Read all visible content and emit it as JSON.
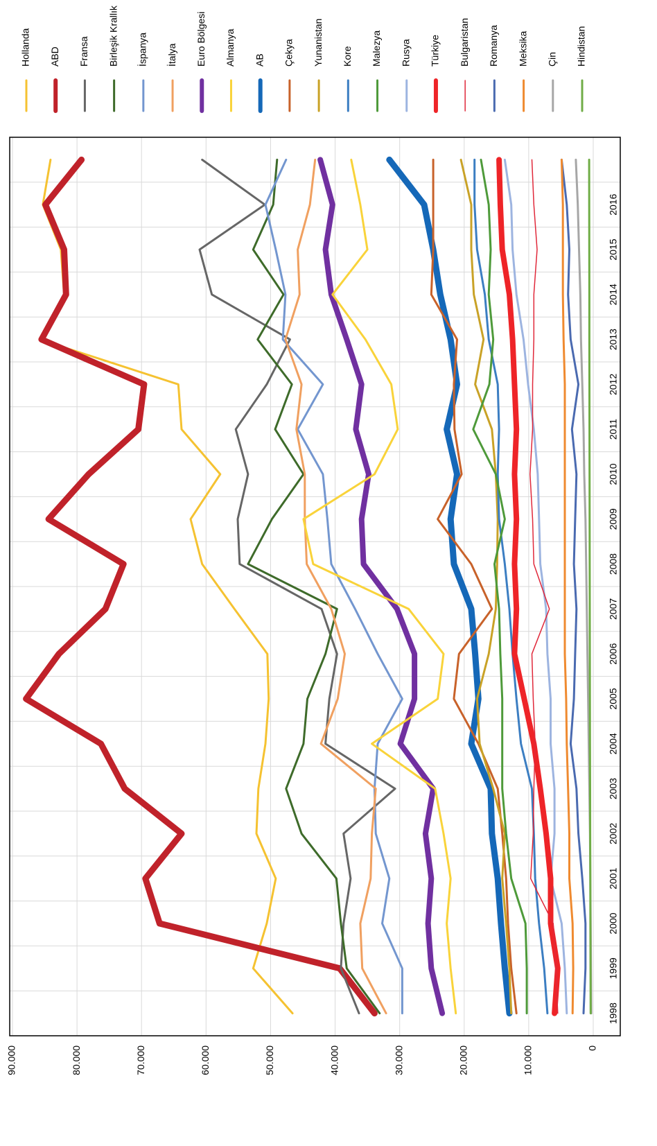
{
  "chart_data": {
    "type": "line",
    "categories": [
      "1998",
      "1999",
      "2000",
      "2001",
      "2002",
      "2003",
      "2004",
      "2005",
      "2006",
      "2007",
      "2008",
      "2009",
      "2010",
      "2011",
      "2012",
      "2013",
      "2014",
      "2015",
      "2016",
      null
    ],
    "ylim": [
      0,
      90000
    ],
    "yticks": [
      0,
      {
        "value": 10000,
        "label": "10.000"
      },
      {
        "value": 20000,
        "label": "20.000"
      },
      {
        "value": 30000,
        "label": "30.000"
      },
      {
        "value": 40000,
        "label": "40.000"
      },
      {
        "value": 50000,
        "label": "50.000"
      },
      {
        "value": 60000,
        "label": "60.000"
      },
      {
        "value": 70000,
        "label": "70.000"
      },
      {
        "value": 80000,
        "label": "80.000"
      },
      {
        "value": 90000,
        "label": "90.000"
      }
    ],
    "grid": true,
    "legend": "top",
    "series": [
      {
        "name": "Hollanda",
        "color": "#f5c231",
        "line_width": 3,
        "values": [
          46600,
          52700,
          50600,
          49200,
          52200,
          51900,
          50800,
          50300,
          50500,
          55600,
          60600,
          62400,
          57800,
          63800,
          64300,
          85800,
          82000,
          82500,
          85300,
          84100
        ]
      },
      {
        "name": "ABD",
        "color": "#c0222a",
        "line_width": 9,
        "values": [
          33900,
          39300,
          67200,
          69400,
          63800,
          72600,
          76300,
          87900,
          82800,
          75600,
          72800,
          84400,
          78200,
          70500,
          69600,
          85500,
          81700,
          82000,
          84900,
          79300
        ]
      },
      {
        "name": "Fransa",
        "color": "#666666",
        "line_width": 3,
        "values": [
          36300,
          39100,
          38700,
          37600,
          38700,
          30700,
          41500,
          40900,
          39700,
          42100,
          54800,
          55100,
          53500,
          55400,
          50600,
          47000,
          59100,
          61000,
          50900,
          60600
        ]
      },
      {
        "name": "Birleşik Krallık",
        "color": "#3e6b2a",
        "line_width": 3,
        "values": [
          33100,
          38200,
          39100,
          39800,
          45200,
          47600,
          44900,
          44300,
          41500,
          39700,
          53500,
          49800,
          44900,
          49300,
          46700,
          52000,
          48000,
          52700,
          49600,
          49000
        ]
      },
      {
        "name": "İspanya",
        "color": "#7396cf",
        "line_width": 3,
        "values": [
          29600,
          29600,
          32700,
          31600,
          33700,
          33900,
          33400,
          29600,
          33400,
          36900,
          40600,
          41200,
          41900,
          45800,
          41900,
          48100,
          47700,
          49200,
          50800,
          47600
        ]
      },
      {
        "name": "İtalya",
        "color": "#f0a060",
        "line_width": 3,
        "values": [
          32100,
          35800,
          36100,
          34500,
          34300,
          33700,
          42200,
          39600,
          38500,
          40600,
          44400,
          44700,
          44700,
          46000,
          45200,
          47700,
          45500,
          45800,
          43900,
          43100
        ]
      },
      {
        "name": "Euro Bölgesi",
        "color": "#7030a0",
        "line_width": 8,
        "values": [
          23400,
          25100,
          25600,
          25100,
          26000,
          24800,
          29900,
          27700,
          27700,
          30400,
          35600,
          35900,
          34800,
          36800,
          35900,
          38200,
          40600,
          41500,
          40400,
          42300
        ]
      },
      {
        "name": "Almanya",
        "color": "#f9d33a",
        "line_width": 3,
        "values": [
          21300,
          22100,
          22700,
          22100,
          23200,
          24500,
          34300,
          24100,
          23200,
          28600,
          43400,
          44900,
          33900,
          30300,
          31300,
          35300,
          40400,
          35000,
          36100,
          37500
        ]
      },
      {
        "name": "AB",
        "color": "#1568b8",
        "line_width": 9,
        "values": [
          13000,
          13700,
          14300,
          14800,
          15700,
          15900,
          18900,
          17800,
          18300,
          18900,
          21600,
          22100,
          21100,
          22700,
          21100,
          22100,
          23700,
          24800,
          26200,
          31600
        ]
      },
      {
        "name": "Çekya",
        "color": "#c8622a",
        "line_width": 3,
        "values": [
          11900,
          12700,
          13200,
          13500,
          14100,
          14800,
          17800,
          21600,
          20800,
          15700,
          18900,
          24100,
          20400,
          21500,
          21600,
          21100,
          25100,
          24800,
          24800,
          24800
        ]
      },
      {
        "name": "Yunanistan",
        "color": "#c9a227",
        "line_width": 3,
        "values": [
          12700,
          13000,
          13500,
          14100,
          13700,
          15500,
          17600,
          18000,
          16200,
          15100,
          14900,
          14800,
          15100,
          15700,
          18300,
          17000,
          18500,
          18900,
          18900,
          20500
        ]
      },
      {
        "name": "Kore",
        "color": "#3c7ec2",
        "line_width": 3,
        "values": [
          7100,
          7600,
          8400,
          9000,
          9200,
          9500,
          11200,
          11900,
          12500,
          13000,
          13700,
          14600,
          14800,
          14600,
          14800,
          16200,
          16800,
          18000,
          18400,
          18400
        ]
      },
      {
        "name": "Malezya",
        "color": "#4e9a3a",
        "line_width": 3,
        "values": [
          10300,
          10300,
          10500,
          12700,
          13500,
          14100,
          14100,
          14100,
          14400,
          14600,
          15300,
          13700,
          15100,
          18600,
          16100,
          15500,
          16200,
          15900,
          16200,
          17400
        ]
      },
      {
        "name": "Rusya",
        "color": "#9db4e0",
        "line_width": 3,
        "values": [
          4100,
          4400,
          4900,
          6600,
          6000,
          6000,
          6600,
          6600,
          7100,
          7300,
          8200,
          8400,
          8600,
          9200,
          10100,
          10800,
          11900,
          12500,
          12700,
          13700
        ]
      },
      {
        "name": "Türkiye",
        "color": "#ee2428",
        "line_width": 8,
        "values": [
          6000,
          5500,
          6600,
          6600,
          7300,
          8200,
          9200,
          10700,
          12200,
          11900,
          12200,
          11900,
          12200,
          11900,
          12200,
          12500,
          13000,
          14100,
          14400,
          14600
        ]
      },
      {
        "name": "Bulgaristan",
        "color": "#e0283a",
        "line_width": 1.5,
        "values": [
          5500,
          5800,
          6200,
          9700,
          9300,
          9200,
          9000,
          9300,
          9500,
          6800,
          9200,
          9400,
          9800,
          9400,
          9400,
          9200,
          9200,
          8700,
          9200,
          9500
        ]
      },
      {
        "name": "Romanya",
        "color": "#4a6ab0",
        "line_width": 3,
        "values": [
          1500,
          1200,
          1200,
          1700,
          2300,
          2600,
          3500,
          3000,
          2800,
          2600,
          3000,
          2800,
          2600,
          3300,
          2300,
          3500,
          3900,
          3700,
          4100,
          4900
        ]
      },
      {
        "name": "Meksika",
        "color": "#ef8a30",
        "line_width": 3,
        "values": [
          3200,
          3100,
          3200,
          3700,
          3700,
          3900,
          4100,
          4200,
          4400,
          4400,
          4400,
          4400,
          4400,
          4400,
          4400,
          4600,
          4700,
          4700,
          4700,
          4900
        ]
      },
      {
        "name": "Çin",
        "color": "#a6a6a6",
        "line_width": 3,
        "values": [
          300,
          350,
          400,
          450,
          500,
          600,
          700,
          800,
          900,
          1000,
          1100,
          1200,
          1400,
          1500,
          1700,
          1900,
          2000,
          2200,
          2400,
          2700
        ]
      },
      {
        "name": "Hindistan",
        "color": "#70ad47",
        "line_width": 3,
        "values": [
          400,
          420,
          440,
          450,
          470,
          480,
          500,
          520,
          530,
          540,
          550,
          560,
          570,
          580,
          590,
          600,
          600,
          610,
          620,
          630
        ]
      }
    ]
  }
}
